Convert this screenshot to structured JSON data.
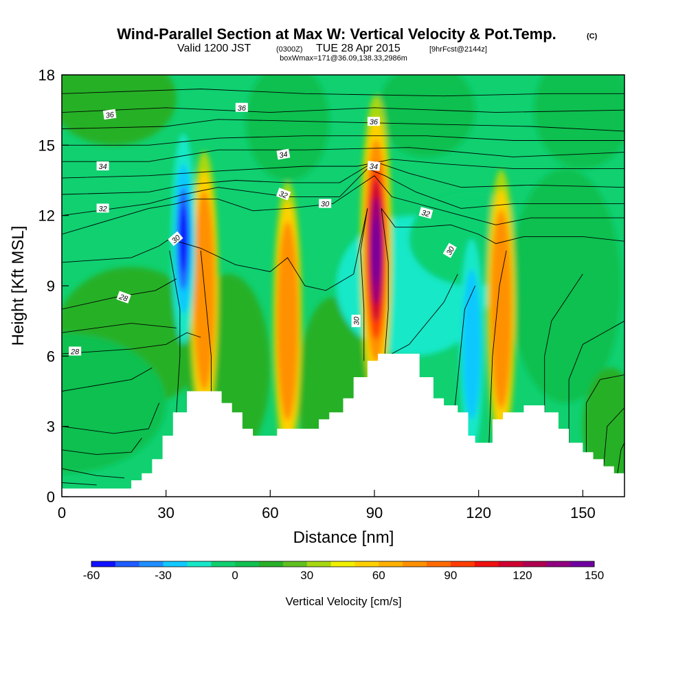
{
  "title": {
    "main": "Wind-Parallel Section at Max W: Vertical Velocity & Pot.Temp.",
    "copyright": "(C)",
    "valid_prefix": "Valid 1200 JST",
    "utc": "(0300Z)",
    "date": "TUE 28 Apr 2015",
    "fcst": "[9hrFcst@2144z]",
    "boxinfo": "boxWmax=171@36.09,138.33,2986m"
  },
  "chart_data": {
    "type": "heatmap",
    "xlabel": "Distance [nm]",
    "ylabel": "Height [Kft MSL]",
    "xlim": [
      0,
      162
    ],
    "ylim": [
      0,
      18
    ],
    "x_ticks": [
      "0",
      "30",
      "60",
      "90",
      "120",
      "150"
    ],
    "y_ticks": [
      "0",
      "3",
      "6",
      "9",
      "12",
      "15",
      "18"
    ],
    "colorbar": {
      "label": "Vertical Velocity [cm/s]",
      "range": [
        -60,
        150
      ],
      "ticks": [
        "-60",
        "-30",
        "0",
        "30",
        "60",
        "90",
        "120",
        "150"
      ],
      "colors": [
        "#1010ff",
        "#1e5cff",
        "#1f8fff",
        "#11c8ff",
        "#16e8c8",
        "#10d070",
        "#10c050",
        "#28b028",
        "#60c020",
        "#a8d810",
        "#f0f000",
        "#ffd000",
        "#ffb000",
        "#ff9000",
        "#ff6a00",
        "#ff3c00",
        "#f01010",
        "#d00030",
        "#b00050",
        "#900080",
        "#7000a0"
      ]
    },
    "terrain_nm_kft": [
      [
        0,
        0.35
      ],
      [
        10,
        0.35
      ],
      [
        18,
        0.35
      ],
      [
        20,
        0.7
      ],
      [
        23,
        1.0
      ],
      [
        26,
        1.6
      ],
      [
        29,
        2.6
      ],
      [
        32,
        3.6
      ],
      [
        36,
        4.5
      ],
      [
        42,
        4.5
      ],
      [
        46,
        4.0
      ],
      [
        49,
        3.6
      ],
      [
        52,
        2.9
      ],
      [
        55,
        2.6
      ],
      [
        59,
        2.6
      ],
      [
        62,
        2.9
      ],
      [
        68,
        2.9
      ],
      [
        72,
        2.9
      ],
      [
        74,
        3.3
      ],
      [
        77,
        3.6
      ],
      [
        81,
        4.2
      ],
      [
        84,
        5.1
      ],
      [
        88,
        5.8
      ],
      [
        91,
        6.1
      ],
      [
        100,
        6.1
      ],
      [
        103,
        5.1
      ],
      [
        107,
        4.2
      ],
      [
        110,
        3.9
      ],
      [
        114,
        3.6
      ],
      [
        117,
        2.6
      ],
      [
        119,
        2.3
      ],
      [
        123,
        2.3
      ],
      [
        124,
        3.3
      ],
      [
        127,
        3.6
      ],
      [
        133,
        3.9
      ],
      [
        139,
        3.6
      ],
      [
        143,
        2.9
      ],
      [
        146,
        2.3
      ],
      [
        150,
        1.9
      ],
      [
        153,
        1.6
      ],
      [
        156,
        1.3
      ],
      [
        159,
        1.0
      ],
      [
        162,
        1.0
      ]
    ],
    "updrafts_cm_s": [
      {
        "x": 41,
        "y": 8.8,
        "max": 85
      },
      {
        "x": 65,
        "y": 7.5,
        "max": 75
      },
      {
        "x": 90.5,
        "y": 10.5,
        "max": 150
      },
      {
        "x": 126.5,
        "y": 8.0,
        "max": 70
      }
    ],
    "downdrafts_cm_s": [
      {
        "x": 35,
        "y": 11.0,
        "min": -60
      },
      {
        "x": 118,
        "y": 6.5,
        "min": -40
      }
    ],
    "isentrope_labels": [
      "36",
      "36",
      "36",
      "34",
      "34",
      "34",
      "32",
      "32",
      "32",
      "30",
      "30",
      "30",
      "30",
      "28",
      "28"
    ]
  },
  "contour_lines": [
    [
      [
        0,
        6.1
      ],
      [
        20,
        6.3
      ],
      [
        30,
        6.5
      ],
      [
        36,
        7.0
      ],
      [
        40,
        6.8
      ]
    ],
    [
      [
        0,
        8.0
      ],
      [
        15,
        8.5
      ],
      [
        27,
        8.8
      ],
      [
        33,
        9.3
      ]
    ],
    [
      [
        0,
        10.0
      ],
      [
        20,
        10.2
      ],
      [
        28,
        10.7
      ],
      [
        31,
        11.0
      ],
      [
        40,
        10.6
      ],
      [
        50,
        9.9
      ],
      [
        60,
        9.6
      ],
      [
        65,
        10.2
      ],
      [
        70,
        9.0
      ],
      [
        76,
        8.8
      ],
      [
        84,
        9.5
      ],
      [
        88,
        12.3
      ]
    ],
    [
      [
        92,
        12.3
      ],
      [
        96,
        11.5
      ],
      [
        103,
        11.5
      ],
      [
        112,
        11.6
      ],
      [
        120,
        11.2
      ],
      [
        125,
        10.8
      ],
      [
        133,
        11.1
      ],
      [
        150,
        11.1
      ],
      [
        162,
        10.9
      ]
    ],
    [
      [
        0,
        11.2
      ],
      [
        25,
        12.3
      ],
      [
        33,
        12.5
      ],
      [
        38,
        12.7
      ],
      [
        45,
        12.7
      ],
      [
        55,
        12.2
      ],
      [
        65,
        12.3
      ],
      [
        78,
        12.5
      ],
      [
        86,
        13.3
      ],
      [
        90,
        13.7
      ],
      [
        95,
        12.8
      ],
      [
        105,
        12.4
      ],
      [
        115,
        12.0
      ],
      [
        125,
        11.6
      ],
      [
        135,
        11.9
      ],
      [
        150,
        11.9
      ],
      [
        162,
        11.9
      ]
    ],
    [
      [
        0,
        12.0
      ],
      [
        25,
        12.5
      ],
      [
        35,
        12.9
      ],
      [
        45,
        13.2
      ],
      [
        65,
        12.8
      ],
      [
        80,
        12.8
      ],
      [
        88,
        14.0
      ],
      [
        93,
        13.7
      ],
      [
        102,
        13.0
      ],
      [
        115,
        12.3
      ],
      [
        130,
        12.5
      ],
      [
        150,
        12.5
      ],
      [
        162,
        12.5
      ]
    ],
    [
      [
        0,
        12.9
      ],
      [
        25,
        13.0
      ],
      [
        35,
        13.3
      ],
      [
        50,
        13.5
      ],
      [
        65,
        13.4
      ],
      [
        80,
        13.4
      ],
      [
        90,
        14.3
      ],
      [
        100,
        13.8
      ],
      [
        115,
        13.2
      ],
      [
        135,
        13.3
      ],
      [
        162,
        13.2
      ]
    ],
    [
      [
        0,
        13.6
      ],
      [
        25,
        13.7
      ],
      [
        45,
        13.9
      ],
      [
        70,
        14.1
      ],
      [
        85,
        14.1
      ],
      [
        95,
        14.4
      ],
      [
        110,
        14.2
      ],
      [
        130,
        14.0
      ],
      [
        162,
        14.0
      ]
    ],
    [
      [
        0,
        14.3
      ],
      [
        25,
        14.3
      ],
      [
        45,
        14.8
      ],
      [
        70,
        14.8
      ],
      [
        100,
        14.9
      ],
      [
        130,
        14.5
      ],
      [
        162,
        14.7
      ]
    ],
    [
      [
        0,
        15.0
      ],
      [
        25,
        15.0
      ],
      [
        45,
        15.3
      ],
      [
        70,
        15.4
      ],
      [
        105,
        15.4
      ],
      [
        130,
        15.2
      ],
      [
        162,
        15.2
      ]
    ],
    [
      [
        0,
        15.7
      ],
      [
        30,
        15.8
      ],
      [
        45,
        16.1
      ],
      [
        75,
        16.0
      ],
      [
        105,
        15.9
      ],
      [
        135,
        15.8
      ],
      [
        162,
        15.6
      ]
    ],
    [
      [
        0,
        16.4
      ],
      [
        30,
        16.6
      ],
      [
        60,
        16.4
      ],
      [
        90,
        16.6
      ],
      [
        125,
        16.4
      ],
      [
        162,
        16.5
      ]
    ],
    [
      [
        0,
        17.2
      ],
      [
        40,
        17.4
      ],
      [
        70,
        17.2
      ],
      [
        110,
        17.1
      ],
      [
        140,
        17.2
      ],
      [
        162,
        17.2
      ]
    ],
    [
      [
        0,
        3.0
      ],
      [
        15,
        2.7
      ],
      [
        25,
        2.9
      ],
      [
        28,
        4.0
      ]
    ],
    [
      [
        0,
        2.0
      ],
      [
        10,
        1.8
      ],
      [
        20,
        1.9
      ],
      [
        23,
        2.5
      ]
    ],
    [
      [
        0,
        1.2
      ],
      [
        10,
        0.9
      ],
      [
        18,
        0.8
      ]
    ],
    [
      [
        0,
        0.6
      ],
      [
        10,
        0.5
      ]
    ],
    [
      [
        0,
        4.5
      ],
      [
        20,
        5.0
      ],
      [
        26,
        5.5
      ]
    ],
    [
      [
        0,
        7.0
      ],
      [
        20,
        7.4
      ],
      [
        33,
        7.2
      ]
    ],
    [
      [
        87,
        5.8
      ],
      [
        87,
        8
      ],
      [
        86,
        10.5
      ],
      [
        88,
        12.3
      ]
    ],
    [
      [
        93,
        6.1
      ],
      [
        94,
        8
      ],
      [
        94,
        10
      ],
      [
        92,
        12.3
      ]
    ],
    [
      [
        33,
        3.6
      ],
      [
        34,
        6
      ],
      [
        34,
        8
      ],
      [
        31,
        10.5
      ]
    ],
    [
      [
        43,
        4.5
      ],
      [
        43,
        6
      ],
      [
        42,
        7.5
      ],
      [
        40,
        10.5
      ]
    ],
    [
      [
        113,
        3.6
      ],
      [
        114,
        5
      ],
      [
        116,
        8
      ],
      [
        119,
        9
      ]
    ],
    [
      [
        123,
        2.3
      ],
      [
        124,
        6
      ],
      [
        126,
        9
      ],
      [
        128,
        10.5
      ]
    ],
    [
      [
        139,
        3.6
      ],
      [
        139,
        6
      ],
      [
        141,
        7.5
      ],
      [
        150,
        9.5
      ]
    ],
    [
      [
        146,
        2.3
      ],
      [
        146,
        5
      ],
      [
        150,
        6.5
      ],
      [
        162,
        7.5
      ]
    ],
    [
      [
        151,
        1.8
      ],
      [
        151,
        4
      ],
      [
        155,
        5
      ],
      [
        162,
        5.2
      ]
    ],
    [
      [
        156,
        1.3
      ],
      [
        157,
        3
      ],
      [
        162,
        3.8
      ]
    ],
    [
      [
        160,
        1.0
      ],
      [
        161,
        2
      ],
      [
        162,
        2.3
      ]
    ],
    [
      [
        95,
        6.1
      ],
      [
        100,
        6.5
      ],
      [
        105,
        7.4
      ],
      [
        110,
        8.3
      ],
      [
        114,
        9.5
      ]
    ]
  ]
}
